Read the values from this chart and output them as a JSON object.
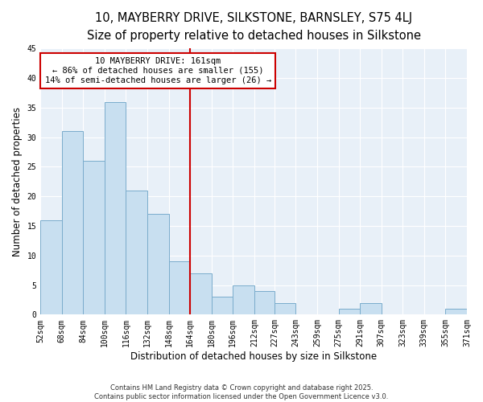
{
  "title": "10, MAYBERRY DRIVE, SILKSTONE, BARNSLEY, S75 4LJ",
  "subtitle": "Size of property relative to detached houses in Silkstone",
  "xlabel": "Distribution of detached houses by size in Silkstone",
  "ylabel": "Number of detached properties",
  "bar_edges": [
    52,
    68,
    84,
    100,
    116,
    132,
    148,
    164,
    180,
    196,
    212,
    227,
    243,
    259,
    275,
    291,
    307,
    323,
    339,
    355,
    371
  ],
  "bar_heights": [
    16,
    31,
    26,
    36,
    21,
    17,
    9,
    7,
    3,
    5,
    4,
    2,
    0,
    0,
    1,
    2,
    0,
    0,
    0,
    1
  ],
  "bar_color": "#c8dff0",
  "bar_edgecolor": "#7aaccc",
  "vline_x": 164,
  "vline_color": "#cc0000",
  "annotation_text": "10 MAYBERRY DRIVE: 161sqm\n← 86% of detached houses are smaller (155)\n14% of semi-detached houses are larger (26) →",
  "annotation_box_edgecolor": "#cc0000",
  "annotation_box_facecolor": "white",
  "ylim": [
    0,
    45
  ],
  "yticks": [
    0,
    5,
    10,
    15,
    20,
    25,
    30,
    35,
    40,
    45
  ],
  "tick_labels": [
    "52sqm",
    "68sqm",
    "84sqm",
    "100sqm",
    "116sqm",
    "132sqm",
    "148sqm",
    "164sqm",
    "180sqm",
    "196sqm",
    "212sqm",
    "227sqm",
    "243sqm",
    "259sqm",
    "275sqm",
    "291sqm",
    "307sqm",
    "323sqm",
    "339sqm",
    "355sqm",
    "371sqm"
  ],
  "footer_text": "Contains HM Land Registry data © Crown copyright and database right 2025.\nContains public sector information licensed under the Open Government Licence v3.0.",
  "title_fontsize": 10.5,
  "subtitle_fontsize": 9.5,
  "axis_label_fontsize": 8.5,
  "tick_fontsize": 7,
  "footer_fontsize": 6,
  "annotation_fontsize": 7.5,
  "background_color": "#ffffff",
  "plot_bg_color": "#e8f0f8",
  "grid_color": "#ffffff"
}
